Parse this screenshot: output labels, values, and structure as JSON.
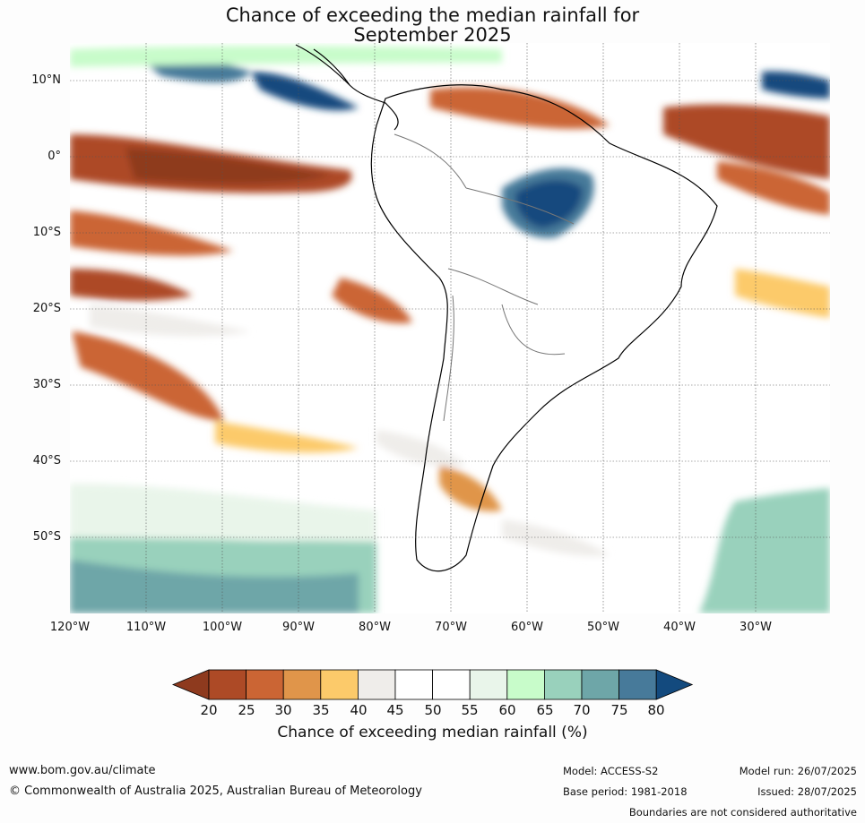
{
  "title_line1": "Chance of exceeding the median rainfall for",
  "title_line2": "September 2025",
  "lat_labels": [
    "10°N",
    "0°",
    "10°S",
    "20°S",
    "30°S",
    "40°S",
    "50°S"
  ],
  "lon_labels": [
    "120°W",
    "110°W",
    "100°W",
    "90°W",
    "80°W",
    "70°W",
    "60°W",
    "50°W",
    "40°W",
    "30°W"
  ],
  "colorbar": {
    "ticks": [
      "20",
      "25",
      "30",
      "35",
      "40",
      "45",
      "50",
      "55",
      "60",
      "65",
      "70",
      "75",
      "80"
    ],
    "colors": [
      "#8e3a1e",
      "#ad4a26",
      "#cb6534",
      "#e0954a",
      "#fcca6a",
      "#efedea",
      "#ffffff",
      "#ffffff",
      "#e9f5ea",
      "#c8fcca",
      "#99d1bc",
      "#6ea6a8",
      "#477a9a",
      "#134a7e"
    ],
    "title": "Chance of exceeding median rainfall (%)"
  },
  "footer": {
    "url": "www.bom.gov.au/climate",
    "copyright": "© Commonwealth of Australia 2025, Australian Bureau of Meteorology",
    "model": "Model: ACCESS-S2",
    "base_period": "Base period: 1981-2018",
    "model_run": "Model run: 26/07/2025",
    "issued": "Issued: 28/07/2025",
    "disclaimer": "Boundaries are not considered authoritative"
  }
}
